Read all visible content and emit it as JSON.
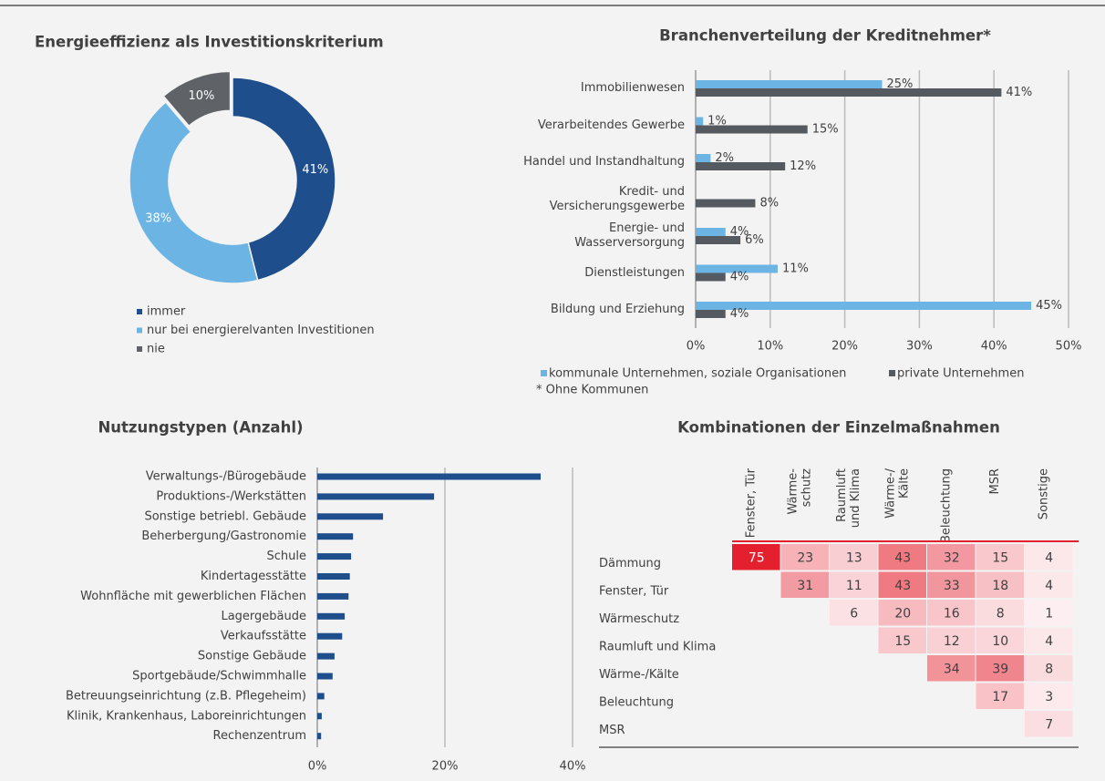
{
  "chart_data": [
    {
      "type": "donut",
      "title": "Energieeffizienz als Investitionskriterium",
      "categories": [
        "immer",
        "nur bei energierelvanten Investitionen",
        "nie"
      ],
      "values": [
        41,
        38,
        10
      ],
      "value_labels": [
        "41%",
        "38%",
        "10%"
      ],
      "colors": [
        "#1f4e8c",
        "#6cb4e4",
        "#5f6368"
      ]
    },
    {
      "type": "hbar_grouped",
      "title": "Branchenverteilung der Kreditnehmer*",
      "categories": [
        "Immobilienwesen",
        "Verarbeitendes Gewerbe",
        "Handel und Instandhaltung",
        "Kredit- und Versicherungsgewerbe",
        "Energie- und Wasserversorgung",
        "Dienstleistungen",
        "Bildung und Erziehung"
      ],
      "series": [
        {
          "name": "kommunale Unternehmen, soziale Organisationen",
          "color": "#6cb4e4",
          "values": [
            25,
            1,
            2,
            null,
            4,
            11,
            45
          ],
          "value_labels": [
            "25%",
            "1%",
            "2%",
            null,
            "4%",
            "11%",
            "45%"
          ]
        },
        {
          "name": "private Unternehmen",
          "color": "#555a60",
          "values": [
            41,
            15,
            12,
            8,
            6,
            4,
            4
          ],
          "value_labels": [
            "41%",
            "15%",
            "12%",
            "8%",
            "6%",
            "4%",
            "4%"
          ]
        }
      ],
      "xlim": [
        0,
        50
      ],
      "xticks": [
        {
          "value": 0,
          "label": "0%"
        },
        {
          "value": 10,
          "label": "10%"
        },
        {
          "value": 20,
          "label": "20%"
        },
        {
          "value": 30,
          "label": "30%"
        },
        {
          "value": 40,
          "label": "40%"
        },
        {
          "value": 50,
          "label": "50%"
        }
      ],
      "grid": true,
      "legend": "bottom",
      "note": "* Ohne Kommunen"
    },
    {
      "type": "hbar",
      "title": "Nutzungstypen (Anzahl)",
      "categories": [
        "Verwaltungs-/Bürogebäude",
        "Produktions-/Werkstätten",
        "Sonstige betriebl. Gebäude",
        "Beherbergung/Gastronomie",
        "Schule",
        "Kindertagesstätte",
        "Wohnfläche mit gewerblichen Flächen",
        "Lagergebäude",
        "Verkaufsstätte",
        "Sonstige Gebäude",
        "Sportgebäude/Schwimmhalle",
        "Betreuungseinrichtung (z.B. Pflegeheim)",
        "Klinik, Krankenhaus, Laboreinrichtungen",
        "Rechenzentrum"
      ],
      "values": [
        35,
        18.3,
        10.3,
        5.6,
        5.3,
        5.1,
        4.9,
        4.3,
        3.9,
        2.7,
        2.4,
        1.1,
        0.7,
        0.6
      ],
      "color": "#1f4e8c",
      "xlim": [
        0,
        40
      ],
      "xticks": [
        {
          "value": 0,
          "label": "0%"
        },
        {
          "value": 20,
          "label": "20%"
        },
        {
          "value": 40,
          "label": "40%"
        }
      ],
      "grid": true
    },
    {
      "type": "heatmap",
      "title": "Kombinationen der Einzelmaßnahmen",
      "columns": [
        [
          "Fenster, Tür"
        ],
        [
          "Wärme-",
          "schutz"
        ],
        [
          "Raumluft",
          "und Klima"
        ],
        [
          "Wärme-/",
          "Kälte"
        ],
        [
          "Beleuchtung"
        ],
        [
          "MSR"
        ],
        [
          "Sonstige"
        ]
      ],
      "rows": [
        "Dämmung",
        "Fenster, Tür",
        "Wärmeschutz",
        "Raumluft und Klima",
        "Wärme-/Kälte",
        "Beleuchtung",
        "MSR"
      ],
      "values": [
        [
          75,
          23,
          13,
          43,
          32,
          15,
          4
        ],
        [
          null,
          31,
          11,
          43,
          33,
          18,
          4
        ],
        [
          null,
          null,
          6,
          20,
          16,
          8,
          1
        ],
        [
          null,
          null,
          null,
          15,
          12,
          10,
          4
        ],
        [
          null,
          null,
          null,
          null,
          34,
          39,
          8
        ],
        [
          null,
          null,
          null,
          null,
          null,
          17,
          3
        ],
        [
          null,
          null,
          null,
          null,
          null,
          null,
          7
        ]
      ],
      "color": "#e5202e"
    }
  ]
}
